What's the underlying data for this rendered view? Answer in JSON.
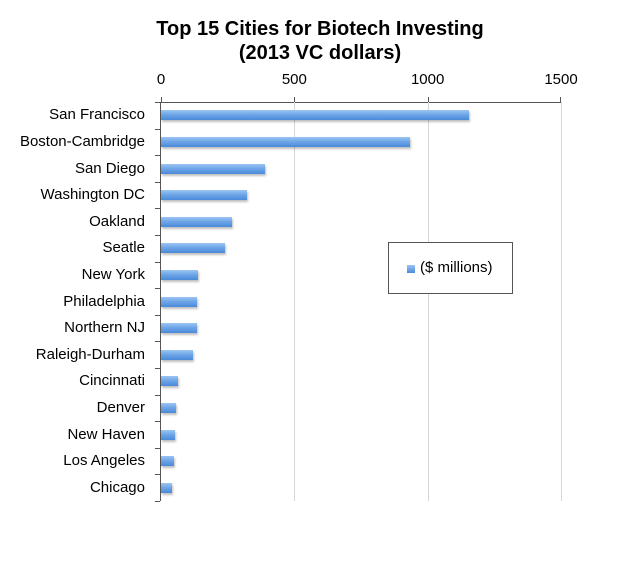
{
  "chart_data": {
    "type": "bar",
    "orientation": "horizontal",
    "title": "Top 15 Cities for Biotech Investing\n(2013 VC dollars)",
    "title_lines": [
      "Top 15 Cities for Biotech Investing",
      "(2013 VC dollars)"
    ],
    "xlabel": "",
    "ylabel": "",
    "xlim": [
      0,
      1500
    ],
    "x_ticks": [
      0,
      500,
      1000,
      1500
    ],
    "x_tick_labels": [
      "0",
      "500",
      "1000",
      "1500"
    ],
    "x_axis_position": "top",
    "grid": true,
    "legend_position": "right-center",
    "categories": [
      "San Francisco",
      "Boston-Cambridge",
      "San Diego",
      "Washington DC",
      "Oakland",
      "Seatle",
      "New York",
      "Philadelphia",
      "Northern NJ",
      "Raleigh-Durham",
      "Cincinnati",
      "Denver",
      "New Haven",
      "Los Angeles",
      "Chicago"
    ],
    "series": [
      {
        "name": "($ millions)",
        "color": "#5b9be0",
        "values": [
          1155,
          934,
          390,
          322,
          266,
          240,
          139,
          135,
          135,
          120,
          64,
          56,
          53,
          49,
          41
        ]
      }
    ]
  },
  "colors": {
    "bar": "#5b9be0",
    "grid": "#d6d6d6",
    "axis": "#555555"
  }
}
